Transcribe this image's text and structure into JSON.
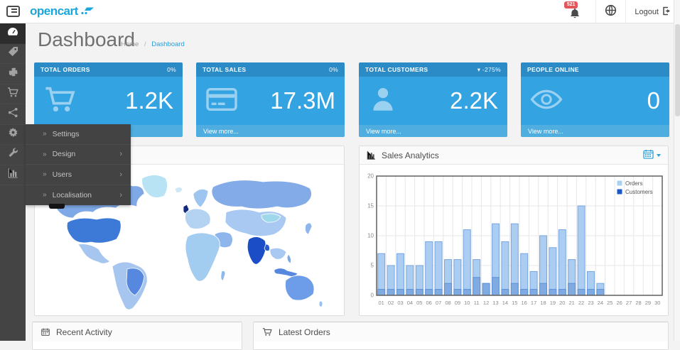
{
  "topbar": {
    "logo_text": "opencart",
    "notification_badge": "521",
    "logout_label": "Logout"
  },
  "page_header": {
    "title": "Dashboard",
    "breadcrumb_home": "Home",
    "breadcrumb_separator": "/",
    "breadcrumb_current": "Dashboard"
  },
  "sidebar": {
    "items": [
      {
        "icon": "dashboard-icon",
        "active": true
      },
      {
        "icon": "catalog-icon"
      },
      {
        "icon": "extensions-icon"
      },
      {
        "icon": "sales-icon"
      },
      {
        "icon": "marketing-icon"
      },
      {
        "icon": "system-icon",
        "open": true
      },
      {
        "icon": "tools-icon"
      },
      {
        "icon": "reports-icon"
      }
    ]
  },
  "system_menu": {
    "items": [
      {
        "label": "Settings",
        "has_children": false
      },
      {
        "label": "Design",
        "has_children": true
      },
      {
        "label": "Users",
        "has_children": true
      },
      {
        "label": "Localisation",
        "has_children": true
      }
    ]
  },
  "tiles": [
    {
      "title": "TOTAL ORDERS",
      "change": "0%",
      "value": "1.2K",
      "footer_link": "View more...",
      "icon": "cart-icon"
    },
    {
      "title": "TOTAL SALES",
      "change": "0%",
      "value": "17.3M",
      "footer_link": "View more...",
      "icon": "credit-card-icon"
    },
    {
      "title": "TOTAL CUSTOMERS",
      "change": "▾ -275%",
      "value": "2.2K",
      "footer_link": "View more...",
      "icon": "person-icon"
    },
    {
      "title": "PEOPLE ONLINE",
      "change": "",
      "value": "0",
      "footer_link": "View more...",
      "icon": "eye-icon"
    }
  ],
  "analytics_panel": {
    "title": "Sales Analytics"
  },
  "bottom_panels": {
    "recent_activity": {
      "title": "Recent Activity"
    },
    "latest_orders": {
      "title": "Latest Orders"
    }
  },
  "colors": {
    "accent_blue": "#34a3e2",
    "tile_header_blue": "#2a8bc7",
    "tile_footer_blue": "#4fade0",
    "sidebar_dark": "#444444",
    "badge_red": "#e4565a",
    "logo_blue": "#1ba7dd",
    "link_blue": "#2a9fd8"
  },
  "chart_data": {
    "type": "bar",
    "title": "Sales Analytics",
    "xlabel": "",
    "ylabel": "",
    "ylim": [
      0,
      20
    ],
    "yticks": [
      0,
      5,
      10,
      15,
      20
    ],
    "grid": true,
    "legend_position": "top-right",
    "categories": [
      "01",
      "02",
      "03",
      "04",
      "05",
      "06",
      "07",
      "08",
      "09",
      "10",
      "11",
      "12",
      "13",
      "14",
      "15",
      "16",
      "17",
      "18",
      "19",
      "20",
      "21",
      "22",
      "23",
      "24",
      "25",
      "26",
      "27",
      "28",
      "29",
      "30"
    ],
    "series": [
      {
        "name": "Orders",
        "fill": "#abcdf1",
        "stroke": "#77a5de",
        "legend_color": "#a8d2f0",
        "values": [
          7,
          5,
          7,
          5,
          5,
          9,
          9,
          6,
          6,
          11,
          6,
          2,
          12,
          9,
          12,
          7,
          4,
          10,
          8,
          11,
          6,
          15,
          4,
          2,
          0,
          0,
          0,
          0,
          0,
          0
        ]
      },
      {
        "name": "Customers",
        "fill": "#7fabe2",
        "stroke": "#5c8fd4",
        "legend_color": "#1b57c5",
        "values": [
          1,
          1,
          1,
          1,
          1,
          1,
          1,
          2,
          1,
          1,
          3,
          2,
          3,
          1,
          2,
          1,
          1,
          2,
          1,
          1,
          2,
          1,
          1,
          1,
          0,
          0,
          0,
          0,
          0,
          0
        ]
      }
    ]
  }
}
